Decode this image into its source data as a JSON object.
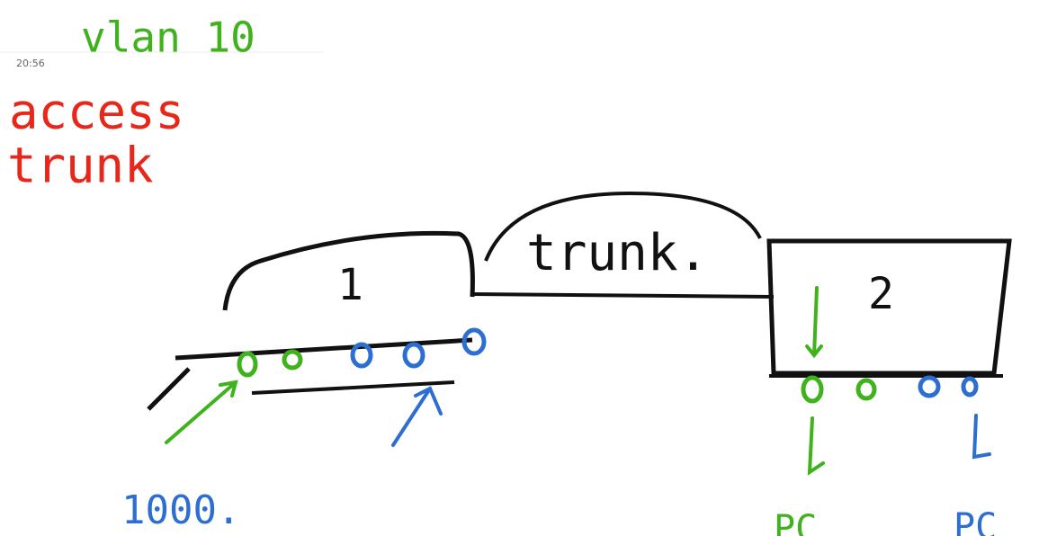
{
  "timestamp": "20:56",
  "notes": {
    "vlan": "vlan 10",
    "mode_access": "access",
    "mode_trunk": "trunk",
    "link_label": "trunk.",
    "switch_1": "1",
    "switch_2": "2",
    "pc_left": "PC",
    "pc_right": "PC",
    "vlan_id": "1000."
  }
}
